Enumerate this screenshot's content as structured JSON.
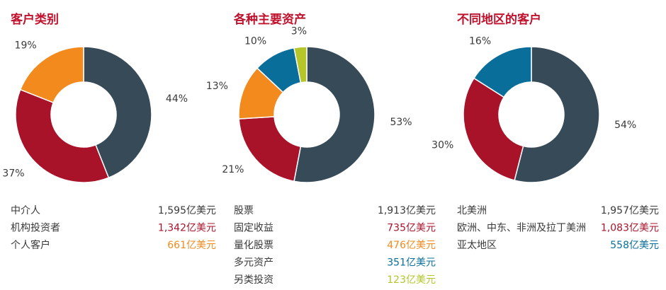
{
  "chart_data": [
    {
      "type": "pie",
      "title": "客户类别",
      "categories": [
        "中介人",
        "机构投资者",
        "个人客户"
      ],
      "values": [
        44,
        37,
        19
      ],
      "value_labels": [
        "44%",
        "37%",
        "19%"
      ],
      "amounts": [
        "1,595亿美元",
        "1,342亿美元",
        "661亿美元"
      ],
      "colors": [
        "#364a57",
        "#a8132a",
        "#f28a1e"
      ]
    },
    {
      "type": "pie",
      "title": "各种主要资产",
      "categories": [
        "股票",
        "固定收益",
        "量化股票",
        "多元资产",
        "另类投资"
      ],
      "values": [
        53,
        21,
        13,
        10,
        3
      ],
      "value_labels": [
        "53%",
        "21%",
        "13%",
        "10%",
        "3%"
      ],
      "amounts": [
        "1,913亿美元",
        "735亿美元",
        "476亿美元",
        "351亿美元",
        "123亿美元"
      ],
      "colors": [
        "#364a57",
        "#a8132a",
        "#f28a1e",
        "#0a6e9a",
        "#b5c52a"
      ]
    },
    {
      "type": "pie",
      "title": "不同地区的客户",
      "categories": [
        "北美洲",
        "欧洲、中东、非洲及拉丁美洲",
        "亚太地区"
      ],
      "values": [
        54,
        30,
        16
      ],
      "value_labels": [
        "54%",
        "30%",
        "16%"
      ],
      "amounts": [
        "1,957亿美元",
        "1,083亿美元",
        "558亿美元"
      ],
      "colors": [
        "#364a57",
        "#a8132a",
        "#0a6e9a"
      ]
    }
  ]
}
